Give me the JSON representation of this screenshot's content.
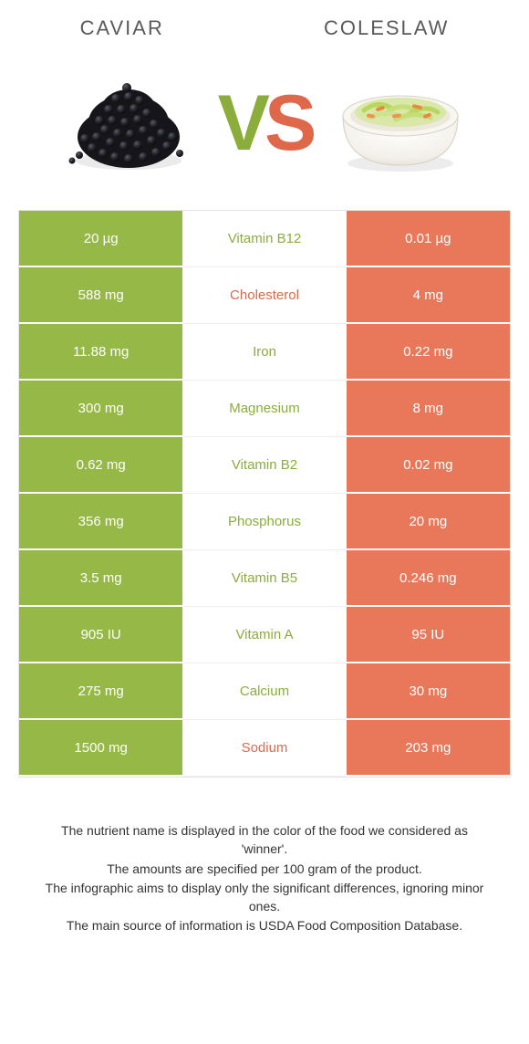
{
  "header": {
    "left_title": "CAVIAR",
    "right_title": "COLESLAW"
  },
  "vs": {
    "v": "V",
    "s": "S"
  },
  "colors": {
    "left_bg": "#96b846",
    "right_bg": "#e9785b",
    "left_text": "#8aad3c",
    "right_text": "#e0684a",
    "row_border": "#ffffff",
    "page_bg": "#ffffff"
  },
  "rows": [
    {
      "left": "20 µg",
      "label": "Vitamin B12",
      "right": "0.01 µg",
      "winner": "left"
    },
    {
      "left": "588 mg",
      "label": "Cholesterol",
      "right": "4 mg",
      "winner": "right"
    },
    {
      "left": "11.88 mg",
      "label": "Iron",
      "right": "0.22 mg",
      "winner": "left"
    },
    {
      "left": "300 mg",
      "label": "Magnesium",
      "right": "8 mg",
      "winner": "left"
    },
    {
      "left": "0.62 mg",
      "label": "Vitamin B2",
      "right": "0.02 mg",
      "winner": "left"
    },
    {
      "left": "356 mg",
      "label": "Phosphorus",
      "right": "20 mg",
      "winner": "left"
    },
    {
      "left": "3.5 mg",
      "label": "Vitamin B5",
      "right": "0.246 mg",
      "winner": "left"
    },
    {
      "left": "905 IU",
      "label": "Vitamin A",
      "right": "95 IU",
      "winner": "left"
    },
    {
      "left": "275 mg",
      "label": "Calcium",
      "right": "30 mg",
      "winner": "left"
    },
    {
      "left": "1500 mg",
      "label": "Sodium",
      "right": "203 mg",
      "winner": "right"
    }
  ],
  "footer": {
    "line1": "The nutrient name is displayed in the color of the food we considered as 'winner'.",
    "line2": "The amounts are specified per 100 gram of the product.",
    "line3": "The infographic aims to display only the significant differences, ignoring minor ones.",
    "line4": "The main source of information is USDA Food Composition Database."
  }
}
